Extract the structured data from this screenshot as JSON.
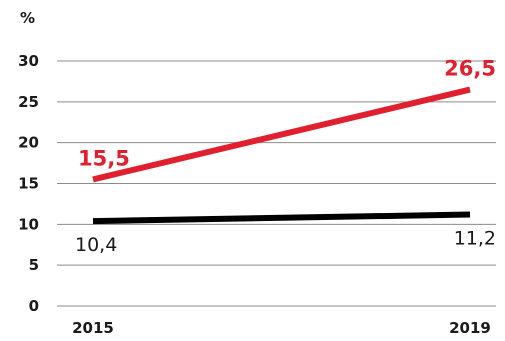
{
  "chart_data": {
    "type": "line",
    "unit": "%",
    "x": [
      "2015",
      "2019"
    ],
    "ylim": [
      0,
      30
    ],
    "yticks": [
      0,
      5,
      10,
      15,
      20,
      25,
      30
    ],
    "grid": true,
    "series": [
      {
        "values": [
          15.5,
          26.5
        ],
        "labels": [
          "15,5",
          "26,5"
        ],
        "color": "#e0202e"
      },
      {
        "values": [
          10.4,
          11.2
        ],
        "labels": [
          "10,4",
          "11,2"
        ],
        "color": "#000000"
      }
    ]
  }
}
